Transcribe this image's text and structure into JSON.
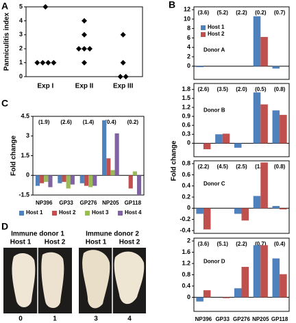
{
  "panel_labels": [
    "A",
    "B",
    "C",
    "D"
  ],
  "panel_b_ylabel": "Fold  change",
  "chart_data": [
    {
      "type": "strip",
      "ylabel": "Panniculitis  index",
      "categories": [
        "Exp  I",
        "Exp  II",
        "Exp  III"
      ],
      "values": [
        [
          5,
          1,
          1,
          1,
          1
        ],
        [
          4,
          3,
          2,
          2,
          2,
          1
        ],
        [
          3,
          1,
          0,
          0
        ]
      ],
      "color": "#000000",
      "ylim": [
        0,
        5
      ],
      "yticks": [
        0,
        1,
        2,
        3,
        4,
        5
      ]
    },
    {
      "type": "bar",
      "subtitle": "Donor  A",
      "annotations": [
        "(3.6)",
        "(5.2)",
        "(2.2)",
        "(0.2)",
        "(0.7)"
      ],
      "series": [
        {
          "name": "Host  1",
          "color": "#4f81bd",
          "values": [
            -0.2,
            0,
            0,
            10.6,
            -0.5
          ]
        },
        {
          "name": "Host  2",
          "color": "#c0504d",
          "values": [
            0,
            0,
            0,
            6.2,
            0
          ]
        }
      ],
      "legend": "upper-left",
      "ylim": [
        -2.8,
        12.6
      ],
      "yticks": [
        0,
        2,
        4,
        6,
        8,
        10,
        12
      ]
    },
    {
      "type": "bar",
      "subtitle": "Donor  B",
      "annotations": [
        "(2.6)",
        "(3.5)",
        "(2.0)",
        "(0.5)",
        "(0.8)"
      ],
      "series": [
        {
          "color": "#4f81bd",
          "values": [
            0,
            0.3,
            -0.15,
            1.7,
            1.1
          ]
        },
        {
          "color": "#c0504d",
          "values": [
            -0.2,
            0.32,
            0,
            1.3,
            0.95
          ]
        }
      ],
      "ylim": [
        -0.45,
        2
      ],
      "yticks": [
        0,
        0.3,
        0.6,
        0.9,
        1.2,
        1.5,
        1.8
      ]
    },
    {
      "type": "bar",
      "subtitle": "Donor  C",
      "annotations": [
        "(2.2)",
        "(4.5)",
        "(2.5)",
        "(1.1)",
        "(0.8)"
      ],
      "series": [
        {
          "color": "#4f81bd",
          "values": [
            -0.1,
            0,
            -0.1,
            0.22,
            0.04
          ]
        },
        {
          "color": "#c0504d",
          "values": [
            -0.38,
            0,
            -0.22,
            0.82,
            -0.02
          ]
        }
      ],
      "ylim": [
        -0.45,
        0.85
      ],
      "yticks": [
        -0.4,
        -0.2,
        0,
        0.2,
        0.4,
        0.6,
        0.8
      ]
    },
    {
      "type": "bar",
      "subtitle": "Donor  D",
      "annotations": [
        "(3.6)",
        "(5.1)",
        "(2.2)",
        "(0.7)",
        "(0.4)"
      ],
      "categories": [
        "NP396",
        "GP33",
        "GP276",
        "NP205",
        "GP118"
      ],
      "series": [
        {
          "color": "#4f81bd",
          "values": [
            -0.15,
            0,
            0.32,
            1.85,
            1.38
          ]
        },
        {
          "color": "#c0504d",
          "values": [
            0.25,
            -0.03,
            1.08,
            1.85,
            0.82
          ]
        }
      ],
      "ylim": [
        -0.5,
        2.1
      ],
      "yticks": [
        0,
        0.4,
        0.8,
        1.2,
        1.6,
        2
      ]
    },
    {
      "type": "bar",
      "ylabel": "Fold  change",
      "annotations": [
        "(1.9)",
        "(2.6)",
        "(1.4)",
        "(0.4)",
        "(0.2)"
      ],
      "categories": [
        "NP396",
        "GP33",
        "GP276",
        "NP205",
        "GP118"
      ],
      "series": [
        {
          "name": "Host  1",
          "color": "#4f81bd",
          "values": [
            -0.8,
            -0.6,
            -0.6,
            4.2,
            0
          ]
        },
        {
          "name": "Host  2",
          "color": "#c0504d",
          "values": [
            -0.6,
            -0.5,
            -0.8,
            1.3,
            -1.0
          ]
        },
        {
          "name": "Host  3",
          "color": "#9bbb59",
          "values": [
            -0.5,
            -1.0,
            -0.9,
            0.4,
            0.3
          ]
        },
        {
          "name": "Host  4",
          "color": "#8064a2",
          "values": [
            -0.9,
            -0.7,
            -0.8,
            3.2,
            -1.5
          ]
        }
      ],
      "legend": "bottom",
      "ylim": [
        -1.5,
        4.5
      ],
      "yticks": [
        -1.5,
        0,
        1.5,
        3,
        4.5
      ]
    }
  ],
  "photos": {
    "groups": [
      "Immune  donor  1",
      "Immune  donor  2"
    ],
    "hosts": [
      "Host  1",
      "Host  2",
      "Host  1",
      "Host  2"
    ],
    "scores": [
      "0",
      "1",
      "3",
      "4"
    ]
  }
}
